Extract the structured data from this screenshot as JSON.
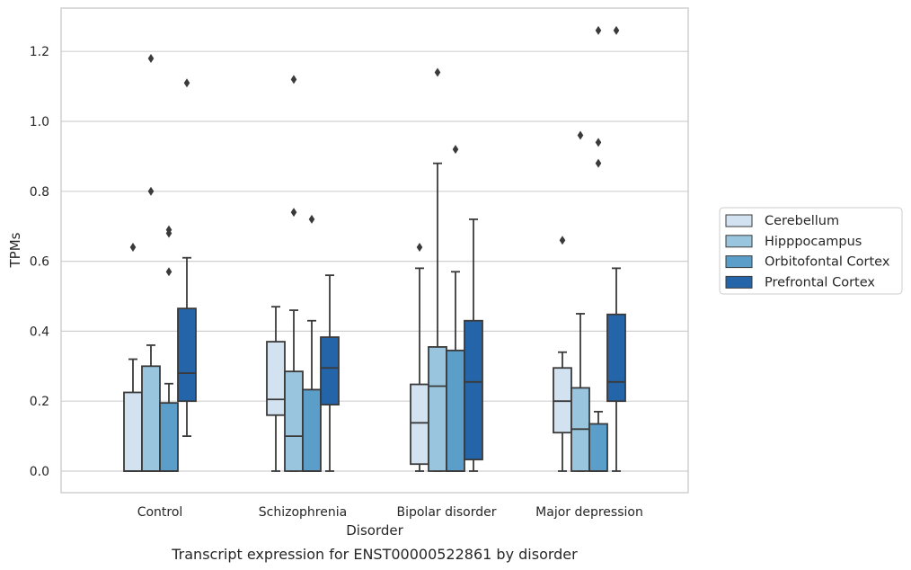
{
  "chart_data": {
    "type": "boxplot",
    "caption": "Transcript expression for ENST00000522861 by disorder",
    "xlabel": "Disorder",
    "ylabel": "TPMs",
    "ylim": [
      -0.06,
      1.32
    ],
    "yticks": [
      0.0,
      0.2,
      0.4,
      0.6,
      0.8,
      1.0,
      1.2
    ],
    "ytick_labels": [
      "0.0",
      "0.2",
      "0.4",
      "0.6",
      "0.8",
      "1.0",
      "1.2"
    ],
    "grid": "horizontal",
    "legend_position": "right",
    "categories": [
      "Control",
      "Schizophrenia",
      "Bipolar disorder",
      "Major depression"
    ],
    "series": [
      {
        "name": "Cerebellum",
        "color": "#d2e2f1",
        "boxes": [
          {
            "whislo": 0.0,
            "q1": 0.0,
            "med": 0.0,
            "q3": 0.225,
            "whishi": 0.32,
            "fliers": [
              0.64
            ]
          },
          {
            "whislo": 0.0,
            "q1": 0.16,
            "med": 0.205,
            "q3": 0.37,
            "whishi": 0.47,
            "fliers": []
          },
          {
            "whislo": 0.0,
            "q1": 0.02,
            "med": 0.138,
            "q3": 0.248,
            "whishi": 0.58,
            "fliers": [
              0.64
            ]
          },
          {
            "whislo": 0.0,
            "q1": 0.11,
            "med": 0.2,
            "q3": 0.295,
            "whishi": 0.34,
            "fliers": [
              0.66
            ]
          }
        ]
      },
      {
        "name": "Hipppocampus",
        "color": "#9ac5de",
        "boxes": [
          {
            "whislo": 0.0,
            "q1": 0.0,
            "med": 0.0,
            "q3": 0.3,
            "whishi": 0.36,
            "fliers": [
              1.18,
              0.8
            ]
          },
          {
            "whislo": 0.0,
            "q1": 0.0,
            "med": 0.1,
            "q3": 0.285,
            "whishi": 0.46,
            "fliers": [
              1.12,
              0.74
            ]
          },
          {
            "whislo": 0.0,
            "q1": 0.0,
            "med": 0.243,
            "q3": 0.355,
            "whishi": 0.88,
            "fliers": [
              1.14
            ]
          },
          {
            "whislo": 0.0,
            "q1": 0.0,
            "med": 0.12,
            "q3": 0.238,
            "whishi": 0.45,
            "fliers": [
              0.96
            ]
          }
        ]
      },
      {
        "name": "Orbitofontal Cortex",
        "color": "#5a9ec9",
        "boxes": [
          {
            "whislo": 0.0,
            "q1": 0.0,
            "med": 0.0,
            "q3": 0.195,
            "whishi": 0.25,
            "fliers": [
              0.69,
              0.68,
              0.57
            ]
          },
          {
            "whislo": 0.0,
            "q1": 0.0,
            "med": 0.0,
            "q3": 0.233,
            "whishi": 0.43,
            "fliers": [
              0.72
            ]
          },
          {
            "whislo": 0.0,
            "q1": 0.0,
            "med": 0.0,
            "q3": 0.345,
            "whishi": 0.57,
            "fliers": [
              0.92
            ]
          },
          {
            "whislo": 0.0,
            "q1": 0.0,
            "med": 0.0,
            "q3": 0.135,
            "whishi": 0.17,
            "fliers": [
              1.26,
              0.94,
              0.88
            ]
          }
        ]
      },
      {
        "name": "Prefrontal Cortex",
        "color": "#2464a8",
        "boxes": [
          {
            "whislo": 0.1,
            "q1": 0.2,
            "med": 0.28,
            "q3": 0.465,
            "whishi": 0.61,
            "fliers": [
              1.11
            ]
          },
          {
            "whislo": 0.0,
            "q1": 0.19,
            "med": 0.295,
            "q3": 0.383,
            "whishi": 0.56,
            "fliers": []
          },
          {
            "whislo": 0.0,
            "q1": 0.033,
            "med": 0.255,
            "q3": 0.43,
            "whishi": 0.72,
            "fliers": []
          },
          {
            "whislo": 0.0,
            "q1": 0.2,
            "med": 0.255,
            "q3": 0.448,
            "whishi": 0.58,
            "fliers": [
              1.26
            ]
          }
        ]
      }
    ]
  }
}
